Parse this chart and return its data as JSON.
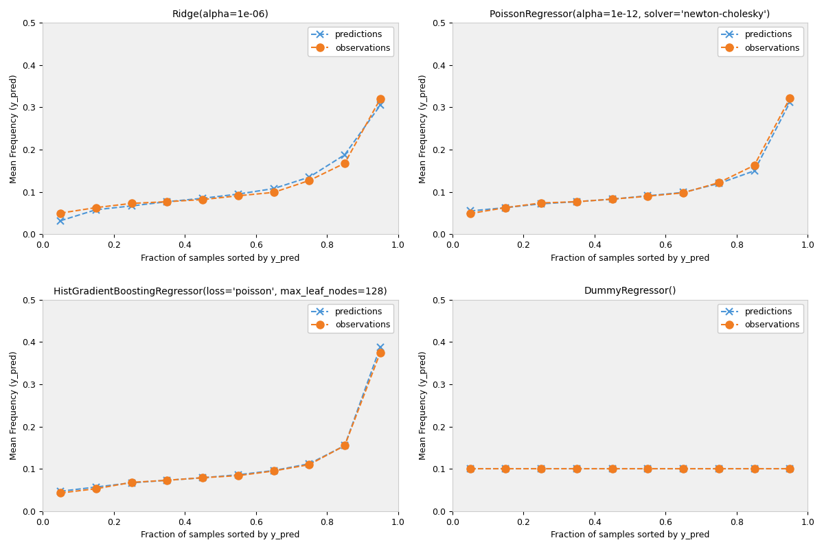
{
  "subplots": [
    {
      "title": "Ridge(alpha=1e-06)",
      "predictions_x": [
        0.05,
        0.15,
        0.25,
        0.35,
        0.45,
        0.55,
        0.65,
        0.75,
        0.85,
        0.95
      ],
      "predictions_y": [
        0.032,
        0.058,
        0.067,
        0.077,
        0.085,
        0.095,
        0.108,
        0.135,
        0.188,
        0.305
      ],
      "observations_x": [
        0.05,
        0.15,
        0.25,
        0.35,
        0.45,
        0.55,
        0.65,
        0.75,
        0.85,
        0.95
      ],
      "observations_y": [
        0.05,
        0.063,
        0.073,
        0.077,
        0.082,
        0.091,
        0.099,
        0.127,
        0.168,
        0.32
      ]
    },
    {
      "title": "PoissonRegressor(alpha=1e-12, solver='newton-cholesky')",
      "predictions_x": [
        0.05,
        0.15,
        0.25,
        0.35,
        0.45,
        0.55,
        0.65,
        0.75,
        0.85,
        0.95
      ],
      "predictions_y": [
        0.055,
        0.063,
        0.072,
        0.077,
        0.083,
        0.091,
        0.099,
        0.12,
        0.15,
        0.312
      ],
      "observations_x": [
        0.05,
        0.15,
        0.25,
        0.35,
        0.45,
        0.55,
        0.65,
        0.75,
        0.85,
        0.95
      ],
      "observations_y": [
        0.049,
        0.063,
        0.074,
        0.077,
        0.083,
        0.09,
        0.098,
        0.122,
        0.163,
        0.322
      ]
    },
    {
      "title": "HistGradientBoostingRegressor(loss='poisson', max_leaf_nodes=128)",
      "predictions_x": [
        0.05,
        0.15,
        0.25,
        0.35,
        0.45,
        0.55,
        0.65,
        0.75,
        0.85,
        0.95
      ],
      "predictions_y": [
        0.047,
        0.057,
        0.067,
        0.073,
        0.079,
        0.086,
        0.096,
        0.112,
        0.155,
        0.388
      ],
      "observations_x": [
        0.05,
        0.15,
        0.25,
        0.35,
        0.45,
        0.55,
        0.65,
        0.75,
        0.85,
        0.95
      ],
      "observations_y": [
        0.043,
        0.053,
        0.068,
        0.073,
        0.079,
        0.084,
        0.095,
        0.11,
        0.155,
        0.375
      ]
    },
    {
      "title": "DummyRegressor()",
      "predictions_x": [
        0.05,
        0.15,
        0.25,
        0.35,
        0.45,
        0.55,
        0.65,
        0.75,
        0.85,
        0.95
      ],
      "predictions_y": [
        0.1,
        0.1,
        0.1,
        0.1,
        0.1,
        0.1,
        0.1,
        0.1,
        0.1,
        0.1
      ],
      "observations_x": [
        0.05,
        0.15,
        0.25,
        0.35,
        0.45,
        0.55,
        0.65,
        0.75,
        0.85,
        0.95
      ],
      "observations_y": [
        0.1,
        0.1,
        0.1,
        0.1,
        0.1,
        0.1,
        0.1,
        0.1,
        0.1,
        0.1
      ]
    }
  ],
  "xlabel": "Fraction of samples sorted by y_pred",
  "ylabel": "Mean Frequency (y_pred)",
  "ylim": [
    0.0,
    0.5
  ],
  "xlim": [
    0.0,
    1.0
  ],
  "pred_color": "#4c96d7",
  "obs_color": "#f07d22",
  "pred_marker": "x",
  "obs_marker": "o",
  "linestyle": "--",
  "bg_color": "#f0f0f0",
  "fig_bg_color": "#ffffff"
}
